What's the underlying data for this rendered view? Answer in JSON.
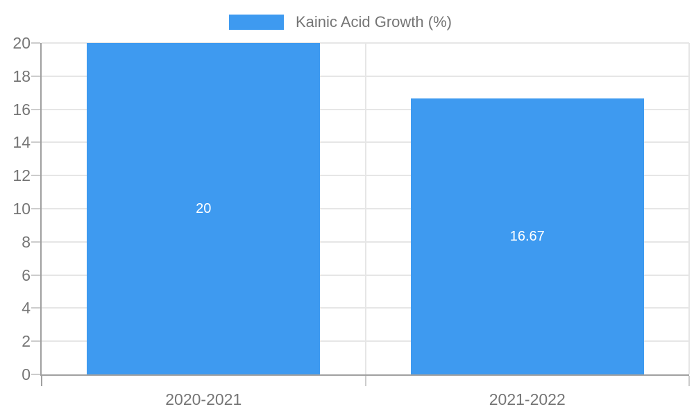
{
  "chart_data": {
    "type": "bar",
    "title": "",
    "legend": {
      "label": "Kainic Acid Growth (%)",
      "position": "top"
    },
    "categories": [
      "2020-2021",
      "2021-2022"
    ],
    "series": [
      {
        "name": "Kainic Acid Growth (%)",
        "values": [
          20,
          16.67
        ],
        "value_labels": [
          "20",
          "16.67"
        ],
        "color": "#3E9AF0"
      }
    ],
    "xlabel": "",
    "ylabel": "",
    "ylim": [
      0,
      20
    ],
    "yticks": [
      0,
      2,
      4,
      6,
      8,
      10,
      12,
      14,
      16,
      18,
      20
    ],
    "grid": true,
    "bar_slot_fraction": 0.72,
    "colors": {
      "bar": "#3E9AF0",
      "axis_line": "#A0A0A0",
      "grid_line": "#E6E6E6",
      "tick_line": "#CCCCCC",
      "axis_label": "#757575",
      "value_label": "#FFFFFF",
      "background": "#FFFFFF"
    }
  }
}
